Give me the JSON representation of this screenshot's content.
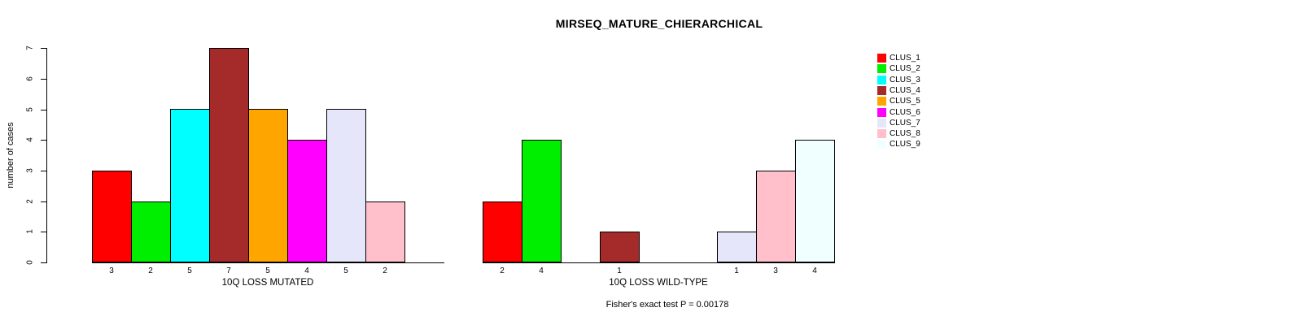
{
  "figure": {
    "title": "MIRSEQ_MATURE_CHIERARCHICAL",
    "y_axis_label": "number of cases",
    "footer": "Fisher's exact test P = 0.00178"
  },
  "chart_data": {
    "type": "bar",
    "title": "MIRSEQ_MATURE_CHIERARCHICAL",
    "ylabel": "number of cases",
    "ylim": [
      0,
      7
    ],
    "yticks": [
      0,
      1,
      2,
      3,
      4,
      5,
      6,
      7
    ],
    "grid": false,
    "legend_position": "right",
    "categories": [
      "10Q LOSS MUTATED",
      "10Q LOSS WILD-TYPE"
    ],
    "series": [
      {
        "name": "CLUS_1",
        "color": "#FF0000",
        "values": [
          3,
          2
        ]
      },
      {
        "name": "CLUS_2",
        "color": "#00EE00",
        "values": [
          2,
          4
        ]
      },
      {
        "name": "CLUS_3",
        "color": "#00FFFF",
        "values": [
          5,
          0
        ]
      },
      {
        "name": "CLUS_4",
        "color": "#A52A2A",
        "values": [
          7,
          1
        ]
      },
      {
        "name": "CLUS_5",
        "color": "#FFA500",
        "values": [
          5,
          0
        ]
      },
      {
        "name": "CLUS_6",
        "color": "#FF00FF",
        "values": [
          4,
          0
        ]
      },
      {
        "name": "CLUS_7",
        "color": "#E6E6FA",
        "values": [
          5,
          1
        ]
      },
      {
        "name": "CLUS_8",
        "color": "#FFC0CB",
        "values": [
          2,
          3
        ]
      },
      {
        "name": "CLUS_9",
        "color": "#F0FFFF",
        "values": [
          0,
          4
        ]
      }
    ],
    "bar_value_labels": "shown below axis for non-zero bars",
    "annotation": "Fisher's exact test P = 0.00178"
  }
}
